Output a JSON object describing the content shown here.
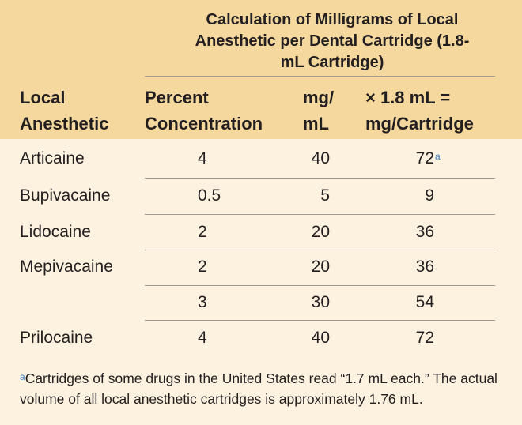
{
  "table": {
    "group_header": "Calculation of Milligrams of Local Anesthetic per Dental Cartridge (1.8-mL Cartridge)",
    "columns": [
      "Local Anesthetic",
      "Percent Concentration",
      "mg/ mL",
      "× 1.8 mL = mg/Cartridge"
    ],
    "rows": [
      [
        "Articaine",
        "4",
        "40",
        {
          "text": "72",
          "note": "a"
        }
      ],
      [
        "Bupivacaine",
        "0.5",
        "5",
        "9"
      ],
      [
        "Lidocaine",
        "2",
        "20",
        "36"
      ],
      [
        "Mepivacaine",
        "2",
        "20",
        "36"
      ],
      [
        null,
        "3",
        "30",
        "54"
      ],
      [
        "Prilocaine",
        "4",
        "40",
        "72"
      ]
    ],
    "footnote": {
      "mark": "a",
      "text": "Cartridges of some drugs in the United States read “1.7 mL each.” The actual volume of all local anesthetic cartridges is approximately 1.76 mL."
    }
  }
}
